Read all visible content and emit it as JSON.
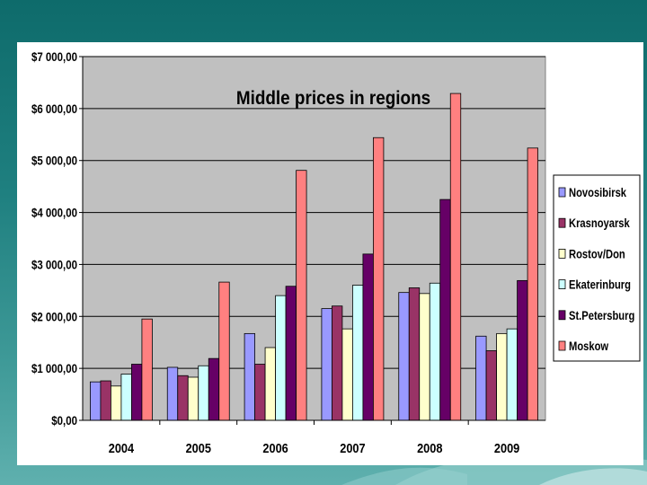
{
  "chart_data": {
    "type": "bar",
    "title": "Middle prices in regions",
    "xlabel": "",
    "ylabel": "",
    "categories": [
      "2004",
      "2005",
      "2006",
      "2007",
      "2008",
      "2009"
    ],
    "ylim": [
      0,
      7000
    ],
    "y_ticks": [
      0,
      1000,
      2000,
      3000,
      4000,
      5000,
      6000,
      7000
    ],
    "y_tick_labels": [
      "$0,00",
      "$1 000,00",
      "$2 000,00",
      "$3 000,00",
      "$4 000,00",
      "$5 000,00",
      "$6 000,00",
      "$7 000,00"
    ],
    "grid": true,
    "legend_position": "right",
    "series": [
      {
        "name": "Novosibirsk",
        "color": "#9999ff",
        "values": [
          740,
          1020,
          1670,
          2150,
          2460,
          1620
        ]
      },
      {
        "name": "Krasnoyarsk",
        "color": "#993366",
        "values": [
          760,
          860,
          1080,
          2200,
          2550,
          1340
        ]
      },
      {
        "name": "Rostov/Don",
        "color": "#ffffcc",
        "values": [
          660,
          830,
          1400,
          1760,
          2440,
          1670
        ]
      },
      {
        "name": "Ekaterinburg",
        "color": "#ccffff",
        "values": [
          890,
          1050,
          2400,
          2600,
          2640,
          1760
        ]
      },
      {
        "name": "St.Petersburg",
        "color": "#660066",
        "values": [
          1080,
          1190,
          2580,
          3200,
          4250,
          2690
        ]
      },
      {
        "name": "Moskow",
        "color": "#ff8080",
        "values": [
          1950,
          2660,
          4810,
          5440,
          6290,
          5240
        ]
      }
    ]
  }
}
